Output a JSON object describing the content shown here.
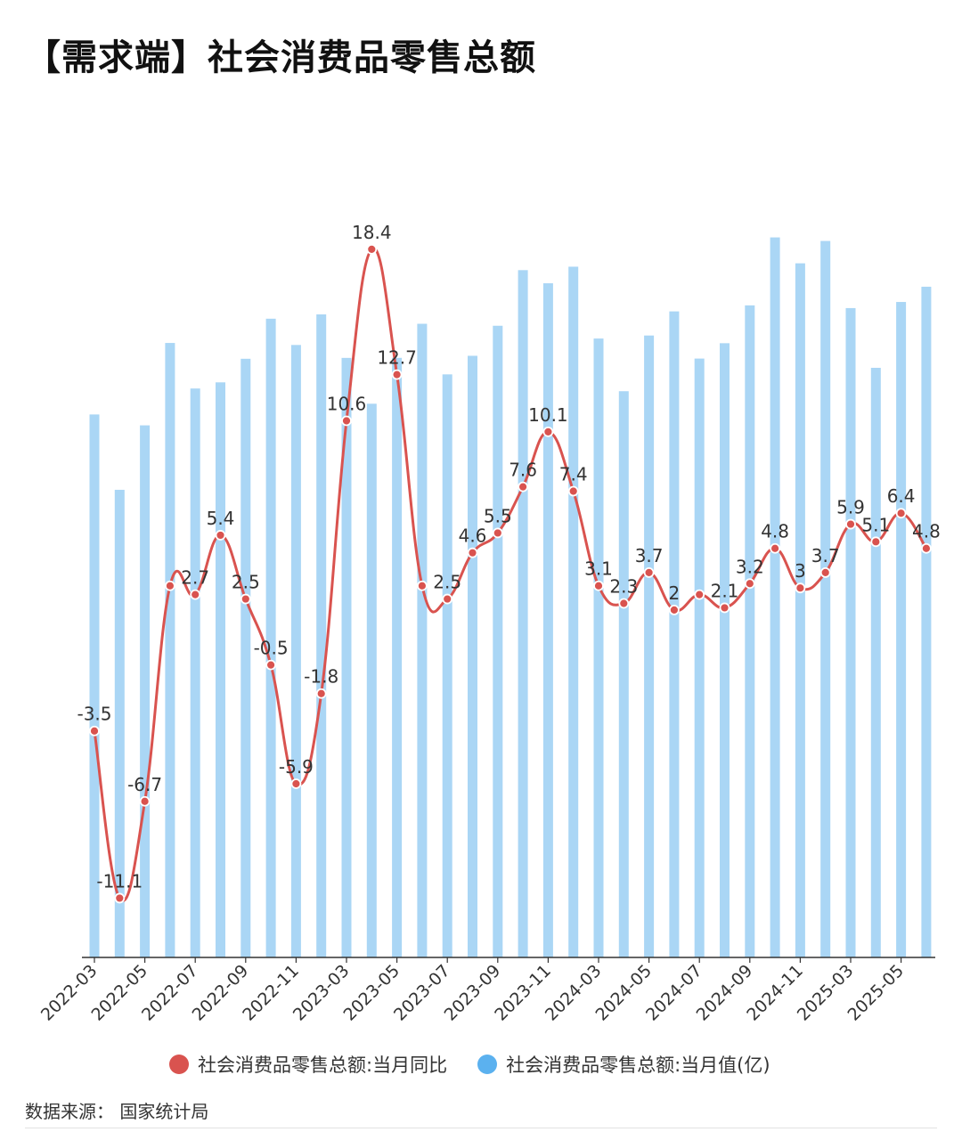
{
  "title": "【需求端】社会消费品零售总额",
  "source": "数据来源： 国家统计局",
  "colors": {
    "line": "#d9534f",
    "bar": "#aad6f5",
    "bar_legend": "#5bb1ef",
    "axis": "#333333",
    "label": "#333333"
  },
  "chart_data": {
    "type": "bar+line",
    "title": "",
    "x": [
      "2022-03",
      "2022-04",
      "2022-05",
      "2022-06",
      "2022-07",
      "2022-08",
      "2022-09",
      "2022-10",
      "2022-11",
      "2022-12",
      "2023-03",
      "2023-04",
      "2023-05",
      "2023-06",
      "2023-07",
      "2023-08",
      "2023-09",
      "2023-10",
      "2023-11",
      "2023-12",
      "2024-03",
      "2024-04",
      "2024-05",
      "2024-06",
      "2024-07",
      "2024-08",
      "2024-09",
      "2024-10",
      "2024-11",
      "2024-12",
      "2025-03",
      "2025-04",
      "2025-05",
      "2025-06"
    ],
    "xticks": [
      "2022-03",
      "2022-05",
      "2022-07",
      "2022-09",
      "2022-11",
      "2023-03",
      "2023-05",
      "2023-07",
      "2023-09",
      "2023-11",
      "2024-03",
      "2024-05",
      "2024-07",
      "2024-09",
      "2024-11",
      "2025-03",
      "2025-05"
    ],
    "series": [
      {
        "name": "社会消费品零售总额:当月同比",
        "type": "line",
        "values": [
          -3.5,
          -11.1,
          -6.7,
          3.1,
          2.7,
          5.4,
          2.5,
          -0.5,
          -5.9,
          -1.8,
          10.6,
          18.4,
          12.7,
          3.1,
          2.5,
          4.6,
          5.5,
          7.6,
          10.1,
          7.4,
          3.1,
          2.3,
          3.7,
          2.0,
          2.7,
          2.1,
          3.2,
          4.8,
          3.0,
          3.7,
          5.9,
          5.1,
          6.4,
          4.8
        ],
        "labels": [
          "-3.5",
          "-11.1",
          "-6.7",
          "",
          "2.7",
          "5.4",
          "2.5",
          "-0.5",
          "-5.9",
          "-1.8",
          "10.6",
          "18.4",
          "12.7",
          "",
          "2.5",
          "4.6",
          "5.5",
          "7.6",
          "10.1",
          "7.4",
          "3.1",
          "2.3",
          "3.7",
          "2",
          "",
          "2.1",
          "3.2",
          "4.8",
          "3",
          "3.7",
          "5.9",
          "5.1",
          "6.4",
          "4.8"
        ]
      },
      {
        "name": "社会消费品零售总额:当月值(亿)",
        "type": "bar",
        "values": [
          34233,
          29483,
          33547,
          38742,
          35870,
          36258,
          37745,
          40271,
          38615,
          40542,
          37800,
          34910,
          37803,
          39951,
          36761,
          37933,
          39826,
          43333,
          42505,
          43550,
          39020,
          35700,
          39211,
          40732,
          37757,
          38726,
          41112,
          45396,
          43763,
          45172,
          40940,
          37174,
          41326,
          42287
        ]
      }
    ],
    "ylim_line": [
      -12.5,
      20.5
    ],
    "ylim_bar": [
      0,
      47000
    ],
    "legend_position": "bottom"
  }
}
